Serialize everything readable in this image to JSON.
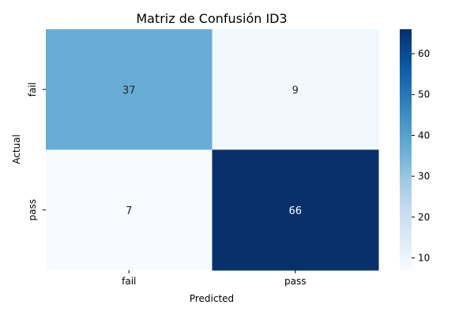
{
  "chart_data": {
    "type": "heatmap",
    "title": "Matriz de Confusión ID3",
    "xlabel": "Predicted",
    "ylabel": "Actual",
    "x_categories": [
      "fail",
      "pass"
    ],
    "y_categories": [
      "fail",
      "pass"
    ],
    "values": [
      [
        37,
        9
      ],
      [
        7,
        66
      ]
    ],
    "colormap": "Blues",
    "colorbar": {
      "range": [
        7,
        66
      ],
      "ticks": [
        10,
        20,
        30,
        40,
        50,
        60
      ]
    }
  }
}
